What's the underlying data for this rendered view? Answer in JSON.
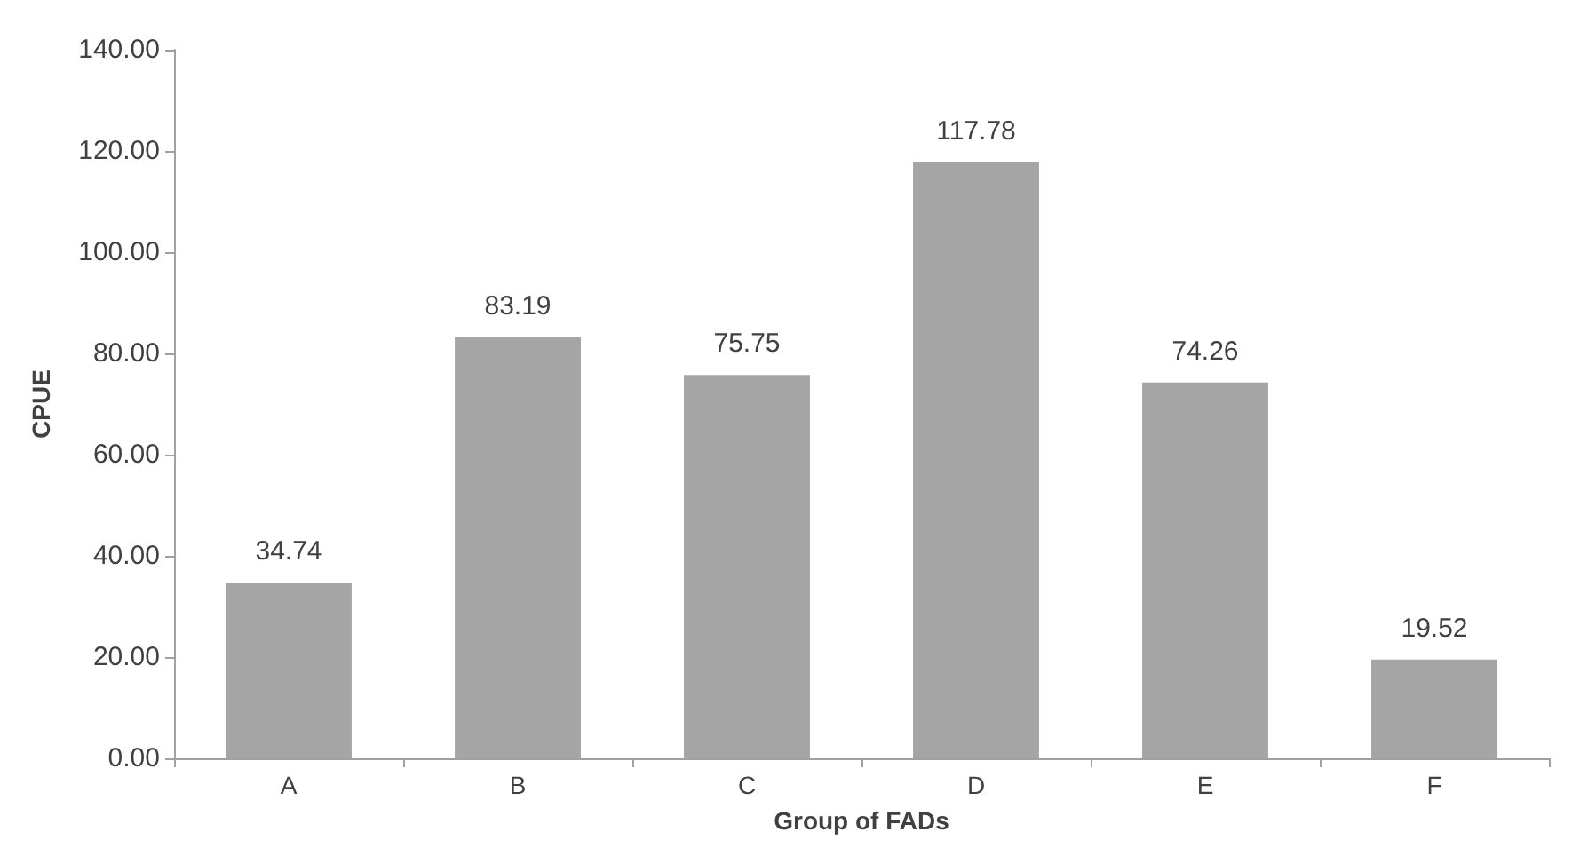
{
  "chart_data": {
    "type": "bar",
    "xlabel": "Group of FADs",
    "ylabel": "CPUE",
    "categories": [
      "A",
      "B",
      "C",
      "D",
      "E",
      "F"
    ],
    "values": [
      34.74,
      83.19,
      75.75,
      117.78,
      74.26,
      19.52
    ],
    "color": "#a5a5a5",
    "ylim": [
      0,
      140
    ],
    "yticks": [
      {
        "value": 0,
        "label": "0.00"
      },
      {
        "value": 20,
        "label": "20.00"
      },
      {
        "value": 40,
        "label": "40.00"
      },
      {
        "value": 60,
        "label": "60.00"
      },
      {
        "value": 80,
        "label": "80.00"
      },
      {
        "value": 100,
        "label": "100.00"
      },
      {
        "value": 120,
        "label": "120.00"
      },
      {
        "value": 140,
        "label": "140.00"
      }
    ],
    "data_labels": true
  }
}
